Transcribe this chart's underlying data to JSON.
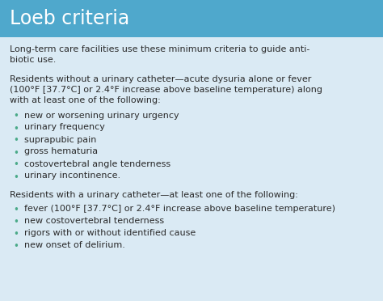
{
  "title": "Loeb criteria",
  "title_bg_color": "#4fa8cc",
  "title_text_color": "#ffffff",
  "body_bg_color": "#daeaf4",
  "body_text_color": "#2a2a2a",
  "bullet_color": "#4aaa88",
  "intro_text": "Long-term care facilities use these minimum criteria to guide anti-\nbiotic use.",
  "section1_header": "Residents without a urinary catheter—acute dysuria alone or fever\n(100°F [37.7°C] or 2.4°F increase above baseline temperature) along\nwith at least one of the following:",
  "section1_bullets": [
    "new or worsening urinary urgency",
    "urinary frequency",
    "suprapubic pain",
    "gross hematuria",
    "costovertebral angle tenderness",
    "urinary incontinence."
  ],
  "section2_header": "Residents with a urinary catheter—at least one of the following:",
  "section2_bullets": [
    "fever (100°F [37.7°C] or 2.4°F increase above baseline temperature)",
    "new costovertebral tenderness",
    "rigors with or without identified cause",
    "new onset of delirium."
  ],
  "title_fontsize": 17,
  "body_fontsize": 8.0
}
